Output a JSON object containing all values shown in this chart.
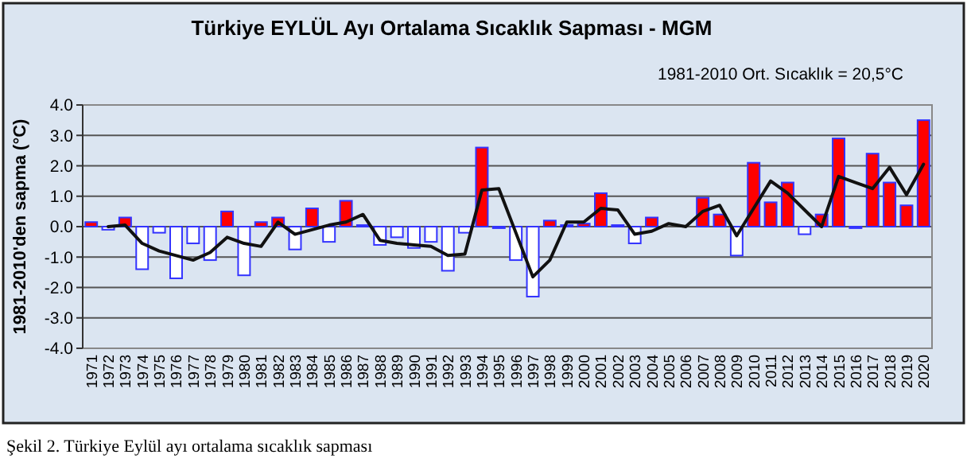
{
  "chart_data": {
    "type": "bar",
    "title": "Türkiye  EYLÜL Ayı  Ortalama  Sıcaklık  Sapması  - MGM",
    "subtitle": "1981-2010 Ort. Sıcaklık = 20,5°C",
    "ylabel": "1981-2010'den sapma (°C)",
    "annotations": [
      "Şekil 2. Türkiye Eylül ayı ortalama sıcaklık sapması"
    ],
    "categories": [
      "1971",
      "1972",
      "1973",
      "1974",
      "1975",
      "1976",
      "1977",
      "1978",
      "1979",
      "1980",
      "1981",
      "1982",
      "1983",
      "1984",
      "1985",
      "1986",
      "1987",
      "1988",
      "1989",
      "1990",
      "1991",
      "1992",
      "1993",
      "1994",
      "1995",
      "1996",
      "1997",
      "1998",
      "1999",
      "2000",
      "2001",
      "2002",
      "2003",
      "2004",
      "2005",
      "2006",
      "2007",
      "2008",
      "2009",
      "2010",
      "2011",
      "2012",
      "2013",
      "2014",
      "2015",
      "2016",
      "2017",
      "2018",
      "2019",
      "2020"
    ],
    "series": [
      {
        "values": [
          0.15,
          -0.1,
          0.3,
          -1.4,
          -0.2,
          -1.7,
          -0.55,
          -1.1,
          0.5,
          -1.6,
          0.15,
          0.3,
          -0.75,
          0.6,
          -0.5,
          0.85,
          0.05,
          -0.6,
          -0.35,
          -0.7,
          -0.5,
          -1.45,
          -0.2,
          2.6,
          -0.05,
          -1.1,
          -2.3,
          0.2,
          0.05,
          0.1,
          1.1,
          0.05,
          -0.55,
          0.3,
          null,
          null,
          0.95,
          0.4,
          -0.95,
          2.1,
          0.8,
          1.45,
          -0.25,
          0.4,
          2.9,
          -0.05,
          2.4,
          1.45,
          0.7,
          3.5
        ],
        "colors": [
          "#ff0000",
          "#ffffff",
          "#ff0000",
          "#ffffff",
          "#ffffff",
          "#ffffff",
          "#ffffff",
          "#ffffff",
          "#ff0000",
          "#ffffff",
          "#ff0000",
          "#ff0000",
          "#ffffff",
          "#ff0000",
          "#ffffff",
          "#ff0000",
          "#ff0000",
          "#ffffff",
          "#ffffff",
          "#ffffff",
          "#ffffff",
          "#ffffff",
          "#ffffff",
          "#ff0000",
          "#ffffff",
          "#ffffff",
          "#ffffff",
          "#ff0000",
          "#ff0000",
          "#ff0000",
          "#ff0000",
          "#ff0000",
          "#ffffff",
          "#ff0000",
          null,
          null,
          "#ff0000",
          "#ff0000",
          "#ffffff",
          "#ff0000",
          "#ff0000",
          "#ff0000",
          "#ffffff",
          "#ff0000",
          "#ff0000",
          "#ffffff",
          "#ff0000",
          "#ff0000",
          "#ff0000",
          "#ff0000"
        ]
      },
      {
        "type": "line",
        "color": "#111111",
        "values": [
          null,
          0.0,
          0.05,
          -0.55,
          -0.8,
          -0.95,
          -1.1,
          -0.85,
          -0.35,
          -0.55,
          -0.65,
          0.15,
          -0.25,
          -0.1,
          0.05,
          0.15,
          0.4,
          -0.45,
          -0.55,
          -0.6,
          -0.65,
          -0.95,
          -0.9,
          1.2,
          1.25,
          -0.2,
          -1.65,
          -1.1,
          0.15,
          0.15,
          0.6,
          0.55,
          -0.25,
          -0.15,
          0.1,
          0.0,
          0.5,
          0.7,
          -0.3,
          0.6,
          1.5,
          1.1,
          0.55,
          0.0,
          1.65,
          1.45,
          1.25,
          1.95,
          1.05,
          2.05
        ]
      }
    ],
    "ylim": [
      -4,
      4
    ],
    "yticks": [
      {
        "value": -4,
        "label": "-4.0"
      },
      {
        "value": -3,
        "label": "-3.0"
      },
      {
        "value": -2,
        "label": "-2.0"
      },
      {
        "value": -1,
        "label": "-1.0"
      },
      {
        "value": 0,
        "label": "0.0"
      },
      {
        "value": 1,
        "label": "1.0"
      },
      {
        "value": 2,
        "label": "2.0"
      },
      {
        "value": 3,
        "label": "3.0"
      },
      {
        "value": 4,
        "label": "4.0"
      }
    ],
    "grid": "y",
    "marker": "none"
  }
}
